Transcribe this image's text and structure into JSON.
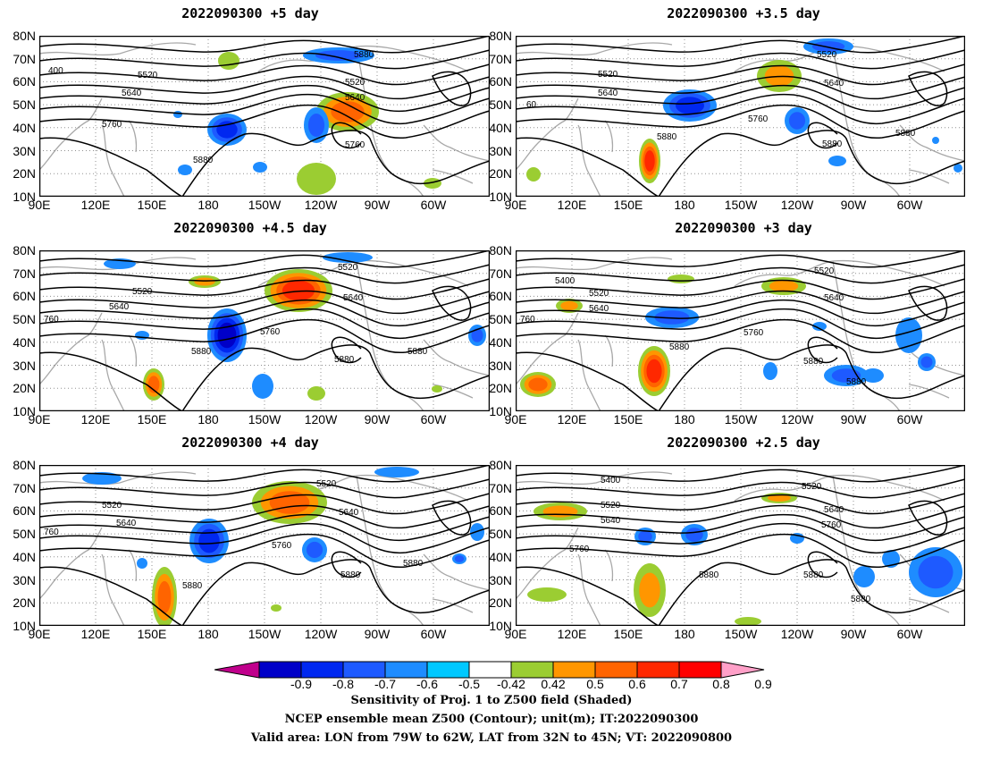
{
  "panels": [
    {
      "title": "2022090300  +5 day",
      "labels": [
        "400",
        "5520",
        "5640",
        "5760",
        "5880",
        "5880",
        "5520",
        "5640",
        "5760",
        "5880"
      ]
    },
    {
      "title": "2022090300  +3.5 day",
      "labels": [
        "5520",
        "5640",
        "60",
        "5880",
        "5760",
        "5520",
        "5640",
        "5880",
        "5880"
      ]
    },
    {
      "title": "2022090300  +4.5 day",
      "labels": [
        "5520",
        "5640",
        "760",
        "5880",
        "5760",
        "5520",
        "5640",
        "5880",
        "5880"
      ]
    },
    {
      "title": "2022090300  +3 day",
      "labels": [
        "5400",
        "5520",
        "5640",
        "760",
        "5880",
        "5760",
        "5520",
        "5640",
        "5880",
        "5880"
      ]
    },
    {
      "title": "2022090300  +4 day",
      "labels": [
        "5520",
        "5640",
        "760",
        "5880",
        "5760",
        "5520",
        "5640",
        "5880",
        "5880"
      ]
    },
    {
      "title": "2022090300  +2.5 day",
      "labels": [
        "5400",
        "5520",
        "5640",
        "5760",
        "5880",
        "5520",
        "5640",
        "5760",
        "5880",
        "5880"
      ]
    }
  ],
  "lat_labels": [
    "80N",
    "70N",
    "60N",
    "50N",
    "40N",
    "30N",
    "20N",
    "10N"
  ],
  "lon_labels": [
    "90E",
    "120E",
    "150E",
    "180",
    "150W",
    "120W",
    "90W",
    "60W"
  ],
  "colorbar": {
    "labels": [
      "-0.9",
      "-0.8",
      "-0.7",
      "-0.6",
      "-0.5",
      "-0.42",
      "0.42",
      "0.5",
      "0.6",
      "0.7",
      "0.8",
      "0.9"
    ],
    "colors": [
      "#c0008c",
      "#0000c8",
      "#0028f0",
      "#1e5aff",
      "#1e8cff",
      "#00c8ff",
      "#ffffff",
      "#9bcd32",
      "#ff9600",
      "#ff6400",
      "#ff2800",
      "#ff0000",
      "#ffa0c8"
    ]
  },
  "caption": {
    "line1": "Sensitivity of Proj. 1 to Z500 field (Shaded)",
    "line2": "NCEP ensemble mean Z500 (Contour); unit(m); IT:2022090300",
    "line3": "Valid area: LON from 79W to 62W, LAT from 32N to 45N; VT: 2022090800"
  }
}
